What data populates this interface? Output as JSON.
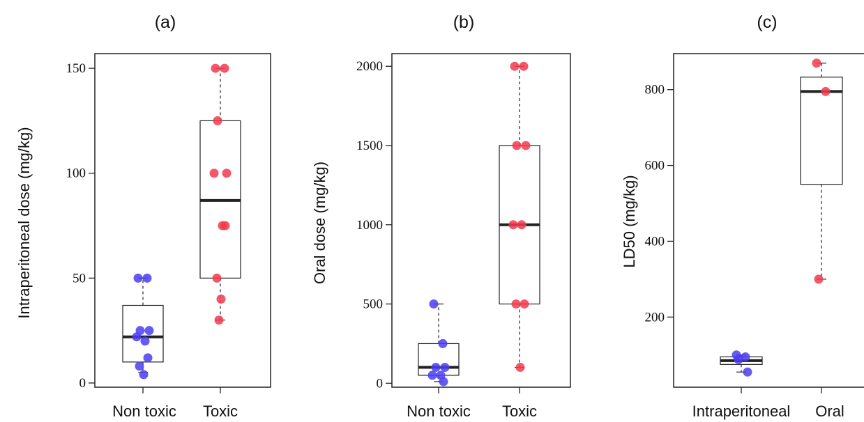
{
  "chart_data": [
    {
      "type": "box",
      "title": "(a)",
      "xlabel": "",
      "ylabel": "Intraperitoneal dose (mg/kg)",
      "categories": [
        "Non toxic",
        "Toxic"
      ],
      "yticks": [
        0,
        50,
        100,
        150
      ],
      "ylim": [
        -2,
        157
      ],
      "grid": false,
      "boxes": [
        {
          "q1": 10,
          "median": 22,
          "q3": 37,
          "whisker_low": 5,
          "whisker_high": 50
        },
        {
          "q1": 50,
          "median": 87,
          "q3": 125,
          "whisker_low": 30,
          "whisker_high": 150
        }
      ],
      "points": [
        {
          "values": [
            50,
            50,
            25,
            25,
            22,
            20,
            12,
            8,
            4
          ],
          "color": "#4a3df2"
        },
        {
          "values": [
            150,
            150,
            125,
            100,
            100,
            75,
            75,
            50,
            40,
            30
          ],
          "color": "#f23a4c"
        }
      ]
    },
    {
      "type": "box",
      "title": "(b)",
      "xlabel": "",
      "ylabel": "Oral dose (mg/kg)",
      "categories": [
        "Non toxic",
        "Toxic"
      ],
      "yticks": [
        0,
        500,
        1000,
        1500,
        2000
      ],
      "ylim": [
        -25,
        2080
      ],
      "grid": false,
      "boxes": [
        {
          "q1": 50,
          "median": 100,
          "q3": 250,
          "whisker_low": 10,
          "whisker_high": 500
        },
        {
          "q1": 500,
          "median": 1000,
          "q3": 1500,
          "whisker_low": 100,
          "whisker_high": 2000
        }
      ],
      "points": [
        {
          "values": [
            500,
            250,
            100,
            100,
            50,
            50,
            10
          ],
          "color": "#4a3df2"
        },
        {
          "values": [
            2000,
            2000,
            1500,
            1500,
            1000,
            1000,
            500,
            500,
            100
          ],
          "color": "#f23a4c"
        }
      ]
    },
    {
      "type": "box",
      "title": "(c)",
      "xlabel": "",
      "ylabel": "LD50 (mg/kg)",
      "categories": [
        "Intraperitoneal",
        "Oral"
      ],
      "yticks": [
        200,
        400,
        600,
        800
      ],
      "ylim": [
        15,
        895
      ],
      "grid": false,
      "boxes": [
        {
          "q1": 75,
          "median": 85,
          "q3": 95,
          "whisker_low": 55,
          "whisker_high": 100
        },
        {
          "q1": 550,
          "median": 795,
          "q3": 833,
          "whisker_low": 300,
          "whisker_high": 870
        }
      ],
      "points": [
        {
          "values": [
            100,
            95,
            88,
            55
          ],
          "color": "#4a3df2"
        },
        {
          "values": [
            870,
            795,
            300
          ],
          "color": "#f23a4c"
        }
      ]
    }
  ]
}
